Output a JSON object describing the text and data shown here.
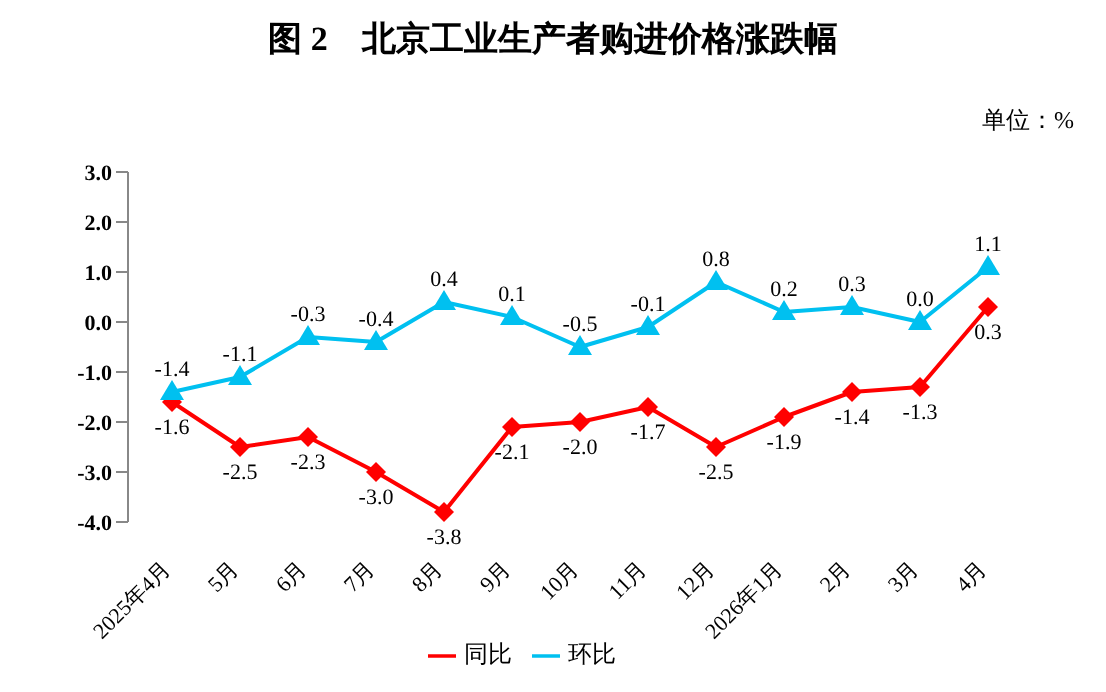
{
  "chart_data": {
    "type": "line",
    "title": "图 2　北京工业生产者购进价格涨跌幅",
    "annotations": [
      "单位：%"
    ],
    "categories": [
      "2025年4月",
      "5月",
      "6月",
      "7月",
      "8月",
      "9月",
      "10月",
      "11月",
      "12月",
      "2026年1月",
      "2月",
      "3月",
      "4月"
    ],
    "series": [
      {
        "name": "同比",
        "color": "#ff0000",
        "marker": "diamond",
        "values": [
          -1.6,
          -2.5,
          -2.3,
          -3.0,
          -3.8,
          -2.1,
          -2.0,
          -1.7,
          -2.5,
          -1.9,
          -1.4,
          -1.3,
          0.3
        ],
        "value_labels": [
          "-1.6",
          "-2.5",
          "-2.3",
          "-3.0",
          "-3.8",
          "-2.1",
          "-2.0",
          "-1.7",
          "-2.5",
          "-1.9",
          "-1.4",
          "-1.3",
          "0.3"
        ]
      },
      {
        "name": "环比",
        "color": "#00c0f0",
        "marker": "triangle",
        "values": [
          -1.4,
          -1.1,
          -0.3,
          -0.4,
          0.4,
          0.1,
          -0.5,
          -0.1,
          0.8,
          0.2,
          0.3,
          0.0,
          1.1
        ],
        "value_labels": [
          "-1.4",
          "-1.1",
          "-0.3",
          "-0.4",
          "0.4",
          "0.1",
          "-0.5",
          "-0.1",
          "0.8",
          "0.2",
          "0.3",
          "0.0",
          "1.1"
        ]
      }
    ],
    "ylim": [
      -4,
      3
    ],
    "yticks": [
      {
        "value": -4,
        "label": "-4.0"
      },
      {
        "value": -3,
        "label": "-3.0"
      },
      {
        "value": -2,
        "label": "-2.0"
      },
      {
        "value": -1,
        "label": "-1.0"
      },
      {
        "value": 0,
        "label": "0.0"
      },
      {
        "value": 1,
        "label": "1.0"
      },
      {
        "value": 2,
        "label": "2.0"
      },
      {
        "value": 3,
        "label": "3.0"
      }
    ],
    "grid": false,
    "legend": "bottom",
    "line_style": "solid"
  }
}
